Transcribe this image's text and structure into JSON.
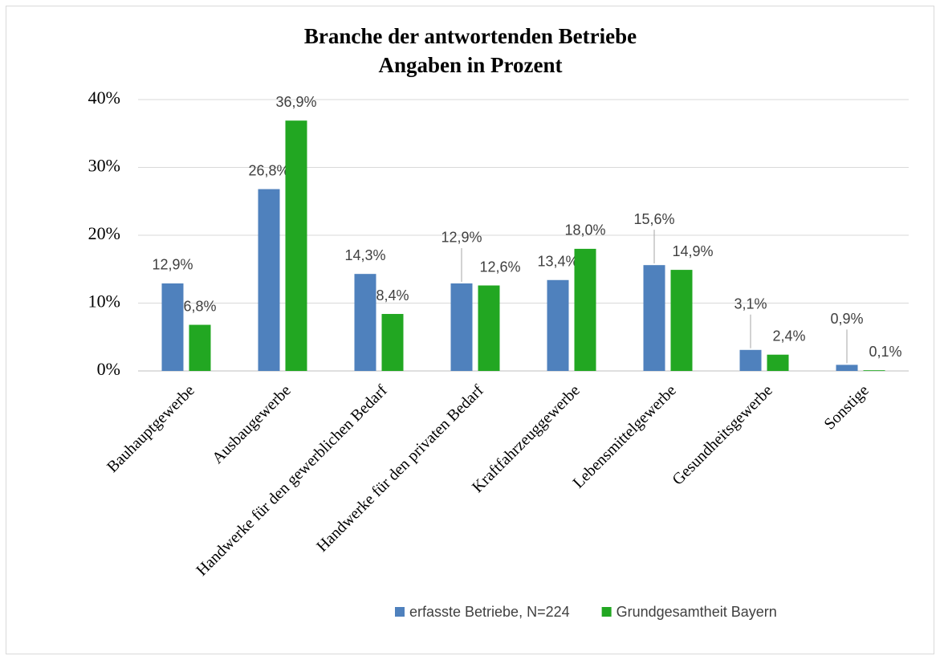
{
  "chart_data": {
    "type": "bar",
    "title": "Branche der antwortenden Betriebe",
    "subtitle": "Angaben in Prozent",
    "categories": [
      "Bauhauptgewerbe",
      "Ausbaugewerbe",
      "Handwerke für den gewerblichen Bedarf",
      "Handwerke für den privaten Bedarf",
      "Kraftfahrzeuggewerbe",
      "Lebensmittelgewerbe",
      "Gesundheitsgewerbe",
      "Sonstige"
    ],
    "series": [
      {
        "name": "erfasste Betriebe, N=224",
        "color": "#4f81bd",
        "values": [
          12.9,
          26.8,
          14.3,
          12.9,
          13.4,
          15.6,
          3.1,
          0.9
        ],
        "value_labels": [
          "12,9%",
          "26,8%",
          "14,3%",
          "12,9%",
          "13,4%",
          "15,6%",
          "3,1%",
          "0,9%"
        ]
      },
      {
        "name": "Grundgesamtheit Bayern",
        "color": "#22a722",
        "values": [
          6.8,
          36.9,
          8.4,
          12.6,
          18.0,
          14.9,
          2.4,
          0.1
        ],
        "value_labels": [
          "6,8%",
          "36,9%",
          "8,4%",
          "12,6%",
          "18,0%",
          "14,9%",
          "2,4%",
          "0,1%"
        ]
      }
    ],
    "ylim": [
      0,
      40
    ],
    "yticks": [
      {
        "value": 0,
        "label": "0%"
      },
      {
        "value": 10,
        "label": "10%"
      },
      {
        "value": 20,
        "label": "20%"
      },
      {
        "value": 30,
        "label": "30%"
      },
      {
        "value": 40,
        "label": "40%"
      }
    ],
    "grid": true,
    "legend": "bottom"
  }
}
